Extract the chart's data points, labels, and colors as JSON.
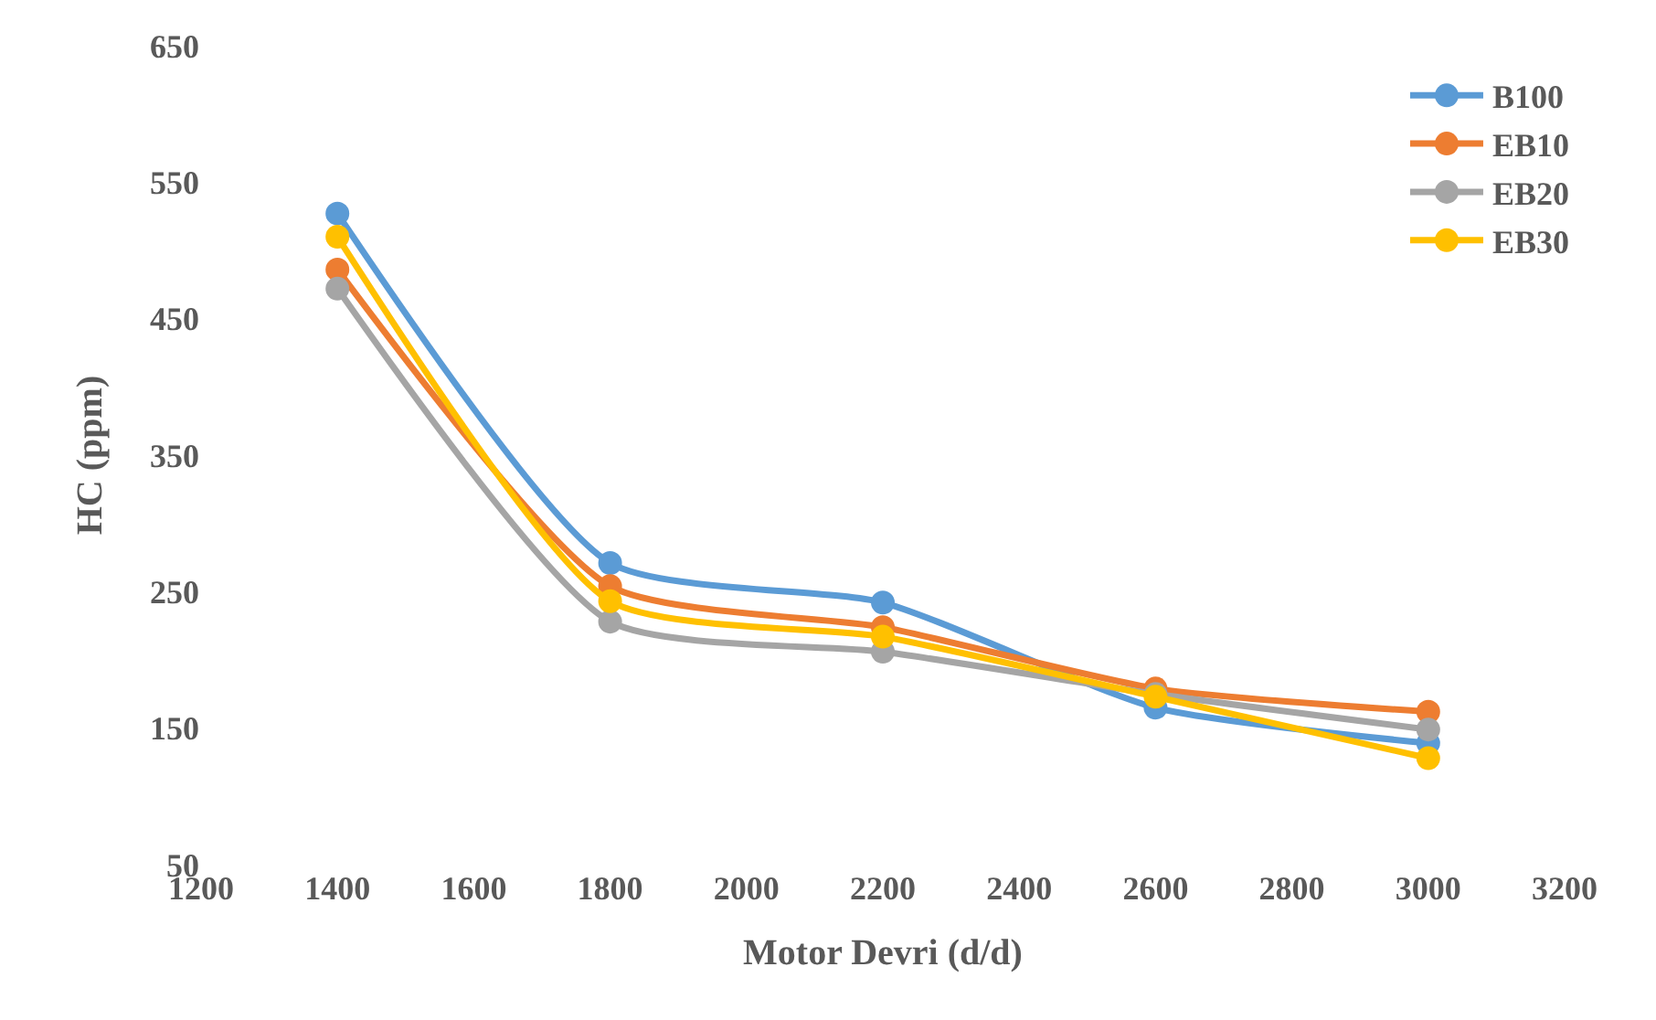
{
  "chart_data": {
    "type": "line",
    "xlabel": "Motor Devri (d/d)",
    "ylabel": "HC (ppm)",
    "x": [
      1400,
      1800,
      2200,
      2600,
      3000
    ],
    "series": [
      {
        "name": "B100",
        "color": "#5b9bd5",
        "values": [
          527,
          271,
          242,
          165,
          139
        ]
      },
      {
        "name": "EB10",
        "color": "#ed7d31",
        "values": [
          486,
          254,
          224,
          179,
          162
        ]
      },
      {
        "name": "EB20",
        "color": "#a5a5a5",
        "values": [
          472,
          228,
          206,
          175,
          149
        ]
      },
      {
        "name": "EB30",
        "color": "#ffc000",
        "values": [
          510,
          243,
          217,
          173,
          128
        ]
      }
    ],
    "xlim": [
      1200,
      3200
    ],
    "xticks": [
      1200,
      1400,
      1600,
      1800,
      2000,
      2200,
      2400,
      2600,
      2800,
      3000,
      3200
    ],
    "ylim": [
      50,
      650
    ],
    "yticks": [
      50,
      150,
      250,
      350,
      450,
      550,
      650
    ],
    "grid": false,
    "legend": "top right",
    "marker": "circle",
    "line_style": "solid"
  }
}
